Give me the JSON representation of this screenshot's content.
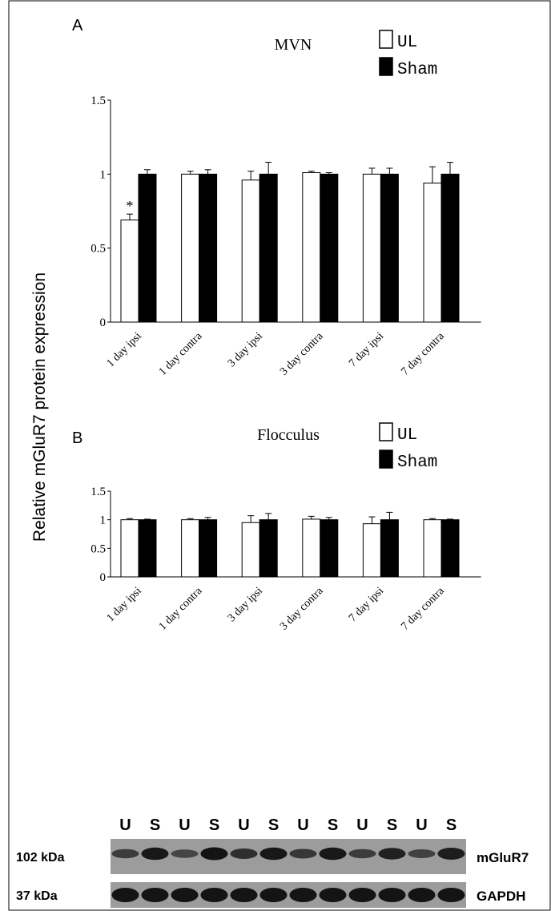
{
  "figure": {
    "ylabel": "Relative mGluR7 protein expression"
  },
  "colors": {
    "UL": "#ffffff",
    "Sham": "#000000",
    "blot_bg": "#9c9c9c",
    "band": "#141414"
  },
  "chart_data": [
    {
      "panel": "A",
      "type": "bar",
      "title": "MVN",
      "categories": [
        "1 day ipsi",
        "1 day contra",
        "3 day ipsi",
        "3 day contra",
        "7 day ipsi",
        "7 day contra"
      ],
      "series": [
        {
          "name": "UL",
          "values": [
            0.69,
            1.0,
            0.96,
            1.01,
            1.0,
            0.94
          ],
          "errors": [
            0.04,
            0.02,
            0.06,
            0.01,
            0.04,
            0.11
          ]
        },
        {
          "name": "Sham",
          "values": [
            1.0,
            1.0,
            1.0,
            1.0,
            1.0,
            1.0
          ],
          "errors": [
            0.03,
            0.03,
            0.08,
            0.01,
            0.04,
            0.08
          ]
        }
      ],
      "yticks": [
        "0",
        "0.5",
        "1",
        "1.5"
      ],
      "ylim": [
        0,
        1.5
      ],
      "annotations": [
        {
          "text": "*",
          "category": "1 day ipsi",
          "series": "UL"
        }
      ],
      "legend": "top-right"
    },
    {
      "panel": "B",
      "type": "bar",
      "title": "Flocculus",
      "categories": [
        "1 day ipsi",
        "1 day contra",
        "3 day ipsi",
        "3 day contra",
        "7 day ipsi",
        "7 day contra"
      ],
      "series": [
        {
          "name": "UL",
          "values": [
            1.0,
            1.0,
            0.95,
            1.01,
            0.93,
            1.0
          ],
          "errors": [
            0.02,
            0.02,
            0.12,
            0.05,
            0.12,
            0.02
          ]
        },
        {
          "name": "Sham",
          "values": [
            1.0,
            1.0,
            1.0,
            1.0,
            1.0,
            1.0
          ],
          "errors": [
            0.01,
            0.04,
            0.11,
            0.04,
            0.13,
            0.01
          ]
        }
      ],
      "yticks": [
        "0",
        "0.5",
        "1",
        "1.5"
      ],
      "ylim": [
        0,
        1.5
      ],
      "legend": "top-right"
    }
  ],
  "blot": {
    "lane_labels": [
      "U",
      "S",
      "U",
      "S",
      "U",
      "S",
      "U",
      "S",
      "U",
      "S",
      "U",
      "S"
    ],
    "rows": [
      {
        "size_label": "102 kDa",
        "protein": "mGluR7",
        "intensities": [
          0.55,
          0.95,
          0.45,
          1.0,
          0.7,
          0.95,
          0.6,
          0.95,
          0.55,
          0.85,
          0.5,
          0.9
        ]
      },
      {
        "size_label": "37 kDa",
        "protein": "GAPDH",
        "intensities": [
          1,
          1,
          1,
          1,
          1,
          1,
          1,
          1,
          1,
          1,
          1,
          1
        ]
      }
    ]
  }
}
